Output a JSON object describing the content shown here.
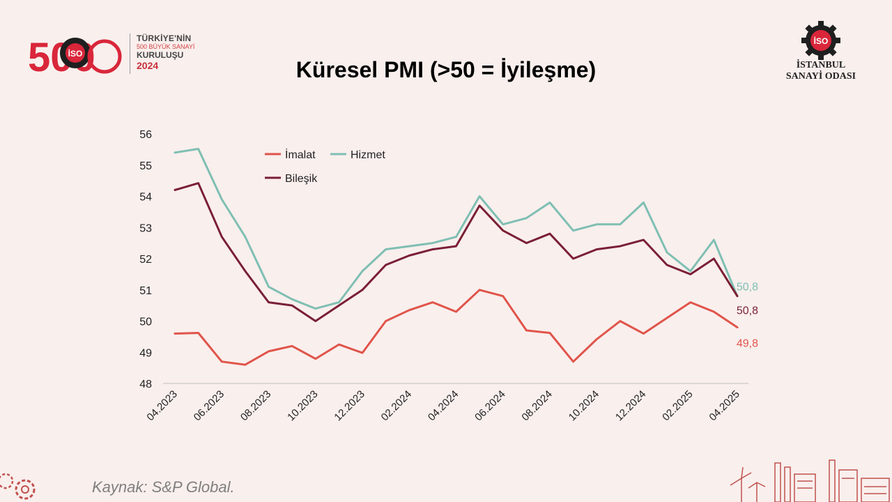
{
  "header": {
    "title": "Küresel PMI (>50 = İyileşme)",
    "logo_500": {
      "number": "500",
      "badge": "İSO",
      "line1": "TÜRKİYE'NİN",
      "line2": "500 BÜYÜK SANAYİ",
      "line3": "KURULUŞU",
      "year": "2024"
    },
    "logo_iso": {
      "badge": "İSO",
      "line1": "İSTANBUL",
      "line2": "SANAYİ ODASI"
    }
  },
  "footer": {
    "source": "Kaynak: S&P Global."
  },
  "colors": {
    "background": "#f9efed",
    "imalat": "#e0544a",
    "hizmet": "#7fbfb3",
    "bilesik": "#7a1f35",
    "brand_red": "#d9263a"
  },
  "chart_data": {
    "type": "line",
    "title": "Küresel PMI (>50 = İyileşme)",
    "xlabel": "",
    "ylabel": "",
    "ylim": [
      48,
      56
    ],
    "yticks": [
      "48",
      "49",
      "50",
      "51",
      "52",
      "53",
      "54",
      "55",
      "56"
    ],
    "categories": [
      "04.2023",
      "05.2023",
      "06.2023",
      "07.2023",
      "08.2023",
      "09.2023",
      "10.2023",
      "11.2023",
      "12.2023",
      "01.2024",
      "02.2024",
      "03.2024",
      "04.2024",
      "05.2024",
      "06.2024",
      "07.2024",
      "08.2024",
      "09.2024",
      "10.2024",
      "11.2024",
      "12.2024",
      "01.2025",
      "02.2025",
      "03.2025",
      "04.2025"
    ],
    "tick_labels": [
      "04.2023",
      "06.2023",
      "08.2023",
      "10.2023",
      "12.2023",
      "02.2024",
      "04.2024",
      "06.2024",
      "08.2024",
      "10.2024",
      "12.2024",
      "02.2025",
      "04.2025"
    ],
    "legend": [
      "İmalat",
      "Hizmet",
      "Bileşik"
    ],
    "legend_position": "top-left",
    "series": [
      {
        "name": "İmalat",
        "values": [
          49.6,
          49.62,
          48.7,
          48.6,
          49.03,
          49.2,
          48.79,
          49.25,
          48.98,
          50.0,
          50.35,
          50.6,
          50.3,
          51.0,
          50.8,
          49.7,
          49.62,
          48.7,
          49.42,
          50.0,
          49.6,
          50.1,
          50.6,
          50.3,
          49.8
        ],
        "end_label": "49,8"
      },
      {
        "name": "Hizmet",
        "values": [
          55.4,
          55.52,
          53.9,
          52.7,
          51.1,
          50.7,
          50.4,
          50.6,
          51.6,
          52.3,
          52.4,
          52.5,
          52.7,
          54.0,
          53.1,
          53.3,
          53.8,
          52.9,
          53.1,
          53.1,
          53.8,
          52.2,
          51.6,
          52.6,
          50.8
        ],
        "end_label": "50,8"
      },
      {
        "name": "Bileşik",
        "values": [
          54.2,
          54.42,
          52.7,
          51.6,
          50.6,
          50.5,
          50.0,
          50.5,
          51.0,
          51.8,
          52.1,
          52.3,
          52.4,
          53.7,
          52.9,
          52.5,
          52.8,
          52.0,
          52.3,
          52.4,
          52.6,
          51.8,
          51.5,
          52.0,
          50.8
        ],
        "end_label": "50,8"
      }
    ]
  }
}
